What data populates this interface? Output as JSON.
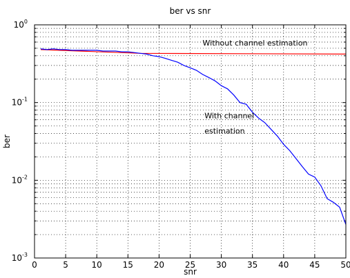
{
  "chart_data": {
    "type": "line",
    "title": "ber vs snr",
    "xlabel": "snr",
    "ylabel": "ber",
    "xlim": [
      0,
      50
    ],
    "ylim": [
      0.001,
      1
    ],
    "yscale": "log",
    "grid": true,
    "x_ticks": [
      "0",
      "5",
      "10",
      "15",
      "20",
      "25",
      "30",
      "35",
      "40",
      "45",
      "50"
    ],
    "y_ticks": [
      {
        "base": "10",
        "exp": "0"
      },
      {
        "base": "10",
        "exp": "-1"
      },
      {
        "base": "10",
        "exp": "-2"
      },
      {
        "base": "10",
        "exp": "-3"
      }
    ],
    "annotations": {
      "without": "Without channel estimation",
      "with_line1": "With channel",
      "with_line2": "estimation"
    },
    "series": [
      {
        "color": "#ff0000",
        "x": [
          1,
          17,
          50
        ],
        "y": [
          0.48,
          0.43,
          0.42
        ]
      },
      {
        "color": "#0000ff",
        "x": [
          1,
          2,
          3,
          4,
          5,
          6,
          7,
          8,
          9,
          10,
          11,
          12,
          13,
          14,
          15,
          16,
          17,
          18,
          19,
          20,
          21,
          22,
          23,
          24,
          25,
          26,
          27,
          28,
          29,
          30,
          31,
          32,
          33,
          34,
          35,
          36,
          37,
          38,
          39,
          40,
          41,
          42,
          43,
          44,
          45,
          46,
          47,
          48,
          49,
          50
        ],
        "y": [
          0.49,
          0.48,
          0.49,
          0.48,
          0.48,
          0.47,
          0.47,
          0.47,
          0.47,
          0.47,
          0.46,
          0.46,
          0.46,
          0.45,
          0.45,
          0.44,
          0.43,
          0.42,
          0.4,
          0.39,
          0.37,
          0.35,
          0.33,
          0.3,
          0.28,
          0.26,
          0.23,
          0.21,
          0.19,
          0.165,
          0.15,
          0.125,
          0.1,
          0.095,
          0.075,
          0.063,
          0.055,
          0.045,
          0.037,
          0.029,
          0.024,
          0.019,
          0.015,
          0.012,
          0.011,
          0.0085,
          0.0058,
          0.0052,
          0.0045,
          0.0027
        ]
      }
    ]
  }
}
